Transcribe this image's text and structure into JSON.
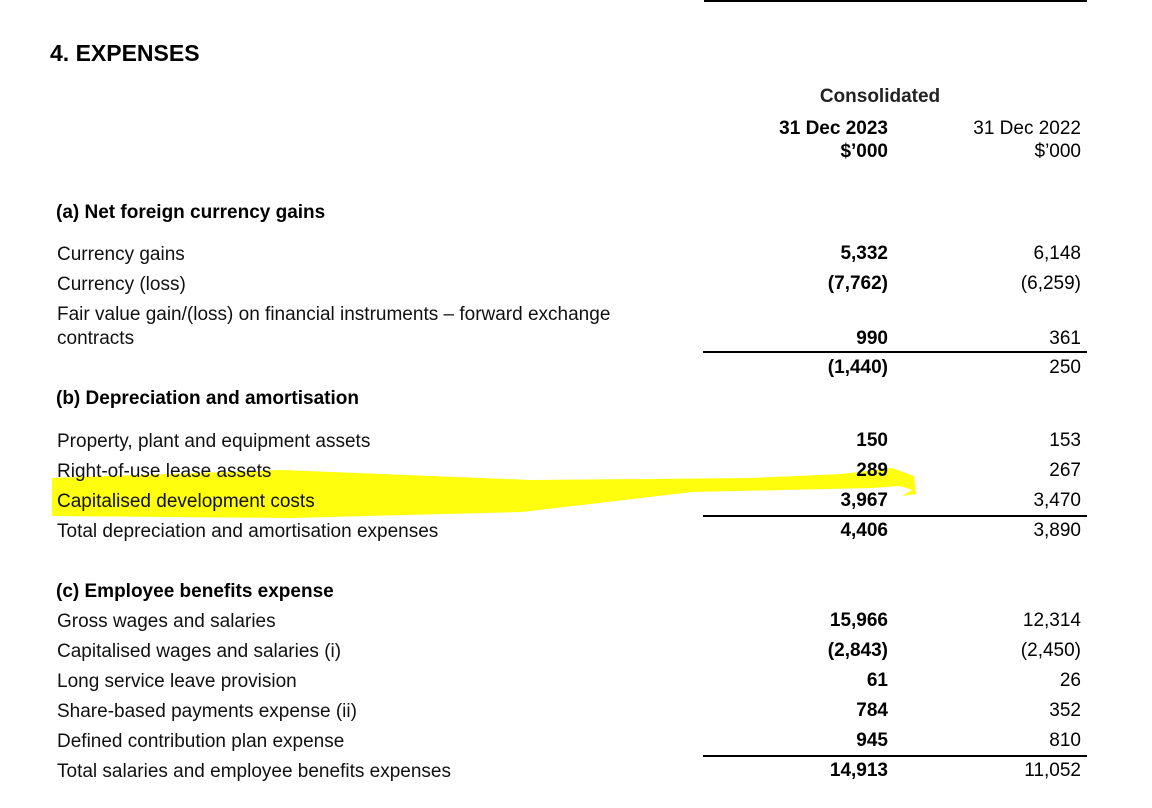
{
  "title": "4.  EXPENSES",
  "header": {
    "group": "Consolidated",
    "col1": {
      "date": "31 Dec 2023",
      "unit": "$’000"
    },
    "col2": {
      "date": "31 Dec 2022",
      "unit": "$’000"
    }
  },
  "sections": {
    "a": {
      "title": "(a) Net foreign currency gains",
      "rows": [
        {
          "label": "Currency gains",
          "v2023": "5,332",
          "v2022": "6,148"
        },
        {
          "label": "Currency (loss)",
          "v2023": "(7,762)",
          "v2022": "(6,259)"
        },
        {
          "label": "Fair value gain/(loss) on financial instruments – forward exchange contracts",
          "label_line1": "Fair value gain/(loss) on financial instruments – forward exchange",
          "label_line2": "contracts",
          "v2023": "990",
          "v2022": "361"
        }
      ],
      "total": {
        "v2023": "(1,440)",
        "v2022": "250"
      }
    },
    "b": {
      "title": "(b) Depreciation and amortisation",
      "rows": [
        {
          "label": "Property, plant and equipment assets",
          "v2023": "150",
          "v2022": "153"
        },
        {
          "label": "Right-of-use lease assets",
          "v2023": "289",
          "v2022": "267"
        },
        {
          "label": "Capitalised development costs",
          "v2023": "3,967",
          "v2022": "3,470"
        },
        {
          "label": "Total depreciation and amortisation expenses",
          "v2023": "4,406",
          "v2022": "3,890"
        }
      ]
    },
    "c": {
      "title": "(c) Employee benefits expense",
      "rows": [
        {
          "label": "Gross wages and salaries",
          "v2023": "15,966",
          "v2022": "12,314"
        },
        {
          "label": "Capitalised wages and salaries (i)",
          "v2023": "(2,843)",
          "v2022": "(2,450)"
        },
        {
          "label": "Long service leave provision",
          "v2023": "61",
          "v2022": "26"
        },
        {
          "label": "Share-based payments expense (ii)",
          "v2023": "784",
          "v2022": "352"
        },
        {
          "label": "Defined contribution plan expense",
          "v2023": "945",
          "v2022": "810"
        },
        {
          "label": "Total salaries and employee benefits expenses",
          "v2023": "14,913",
          "v2022": "11,052"
        }
      ]
    }
  },
  "colors": {
    "highlight": "#ffff00"
  }
}
